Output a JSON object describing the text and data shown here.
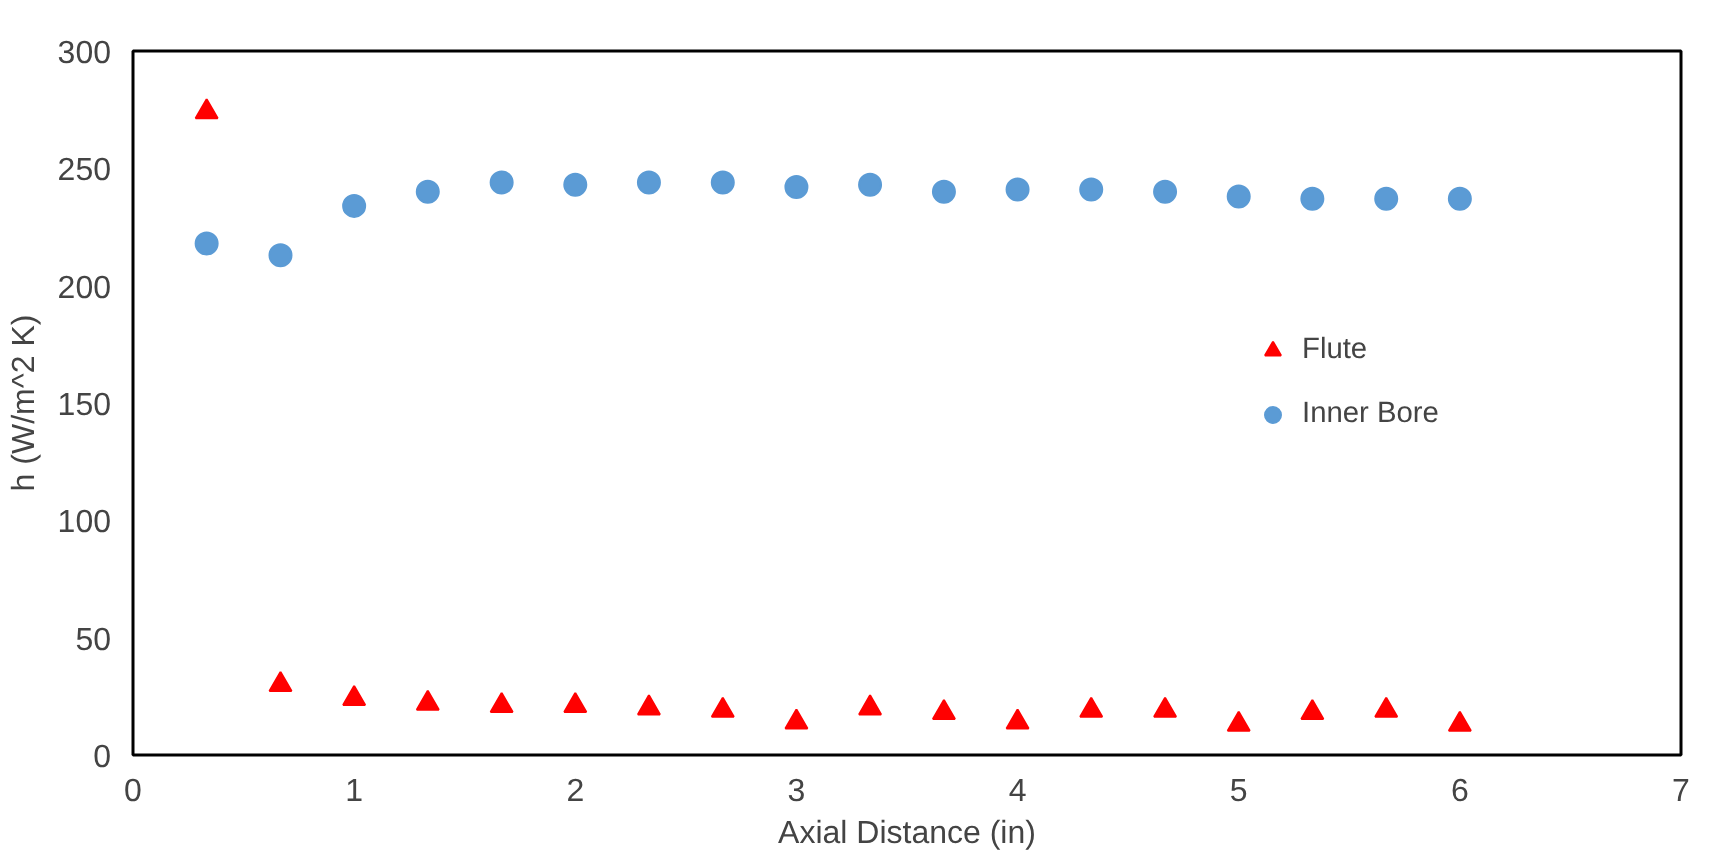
{
  "chart_data": {
    "type": "scatter",
    "xlabel": "Axial Distance (in)",
    "ylabel": "h (W/m^2 K)",
    "x": [
      0.333,
      0.667,
      1.0,
      1.333,
      1.667,
      2.0,
      2.333,
      2.667,
      3.0,
      3.333,
      3.667,
      4.0,
      4.333,
      4.667,
      5.0,
      5.333,
      5.667,
      6.0
    ],
    "series": [
      {
        "name": "Flute",
        "color": "#ff0000",
        "marker": "triangle",
        "values": [
          274,
          30,
          24,
          22,
          21,
          21,
          20,
          19,
          14,
          20,
          18,
          14,
          19,
          19,
          13,
          18,
          19,
          13
        ]
      },
      {
        "name": "Inner Bore",
        "color": "#5b9bd5",
        "marker": "circle",
        "values": [
          218,
          213,
          234,
          240,
          244,
          243,
          244,
          244,
          242,
          243,
          240,
          241,
          241,
          240,
          238,
          237,
          237,
          237
        ]
      }
    ],
    "xlim": [
      0,
      7
    ],
    "xticks": [
      0,
      1,
      2,
      3,
      4,
      5,
      6,
      7
    ],
    "ylim": [
      0,
      300
    ],
    "yticks": [
      0,
      50,
      100,
      150,
      200,
      250,
      300
    ],
    "grid": false,
    "legend": "right"
  }
}
